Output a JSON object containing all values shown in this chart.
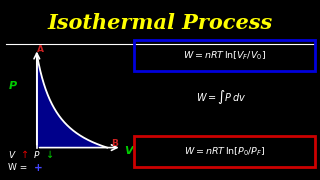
{
  "background_color": "#000000",
  "title": "Isothermal Process",
  "title_color": "#ffff00",
  "title_fontsize": 15,
  "separator_color": "#ffffff",
  "axis_color": "#ffffff",
  "fill_color": "#00008b",
  "box1_color": "#0000dd",
  "box2_color": "#cc0000",
  "white": "#ffffff",
  "green": "#00cc00",
  "red": "#dd0000",
  "p_label_color": "#00cc00",
  "v_label_color": "#00cc00",
  "a_label_color": "#cc2222",
  "b_label_color": "#cc2222",
  "plus_color": "#4444ff",
  "eq1": "W = nRT ln[V_F/V_0]",
  "eq2": "W = \\int Pdv",
  "eq3": "W = nRT ln[P_0/P_F]"
}
